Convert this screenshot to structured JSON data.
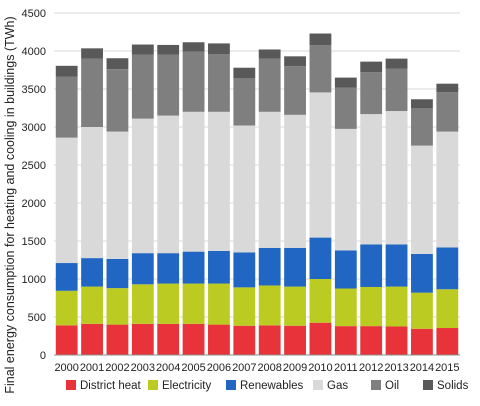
{
  "chart_data": {
    "type": "bar",
    "stacked": true,
    "title": "",
    "xlabel": "",
    "ylabel": "Final energy consumption for heating and cooling in buildings (TWh)",
    "ylim": [
      0,
      4500
    ],
    "yticks": [
      0,
      500,
      1000,
      1500,
      2000,
      2500,
      3000,
      3500,
      4000,
      4500
    ],
    "grid": true,
    "legend": "bottom",
    "categories": [
      "2000",
      "2001",
      "2002",
      "2003",
      "2004",
      "2005",
      "2006",
      "2007",
      "2008",
      "2009",
      "2010",
      "2011",
      "2012",
      "2013",
      "2014",
      "2015"
    ],
    "series": [
      {
        "name": "District heat",
        "color": "#e8333a",
        "values": [
          390,
          410,
          400,
          410,
          410,
          410,
          400,
          385,
          390,
          385,
          425,
          380,
          380,
          375,
          345,
          355
        ]
      },
      {
        "name": "Electricity",
        "color": "#bccb22",
        "values": [
          455,
          490,
          480,
          520,
          530,
          530,
          540,
          505,
          525,
          515,
          575,
          495,
          515,
          525,
          475,
          510
        ]
      },
      {
        "name": "Renewables",
        "color": "#2166c2",
        "values": [
          365,
          375,
          385,
          410,
          400,
          420,
          430,
          460,
          495,
          510,
          545,
          500,
          560,
          555,
          510,
          550
        ]
      },
      {
        "name": "Gas",
        "color": "#d9d9d9",
        "values": [
          1650,
          1725,
          1675,
          1770,
          1810,
          1840,
          1830,
          1670,
          1790,
          1750,
          1910,
          1600,
          1715,
          1755,
          1425,
          1525
        ]
      },
      {
        "name": "Oil",
        "color": "#7f7f7f",
        "values": [
          800,
          900,
          820,
          840,
          800,
          790,
          760,
          620,
          700,
          640,
          620,
          545,
          550,
          560,
          490,
          520
        ]
      },
      {
        "name": "Solids",
        "color": "#595959",
        "values": [
          145,
          135,
          145,
          135,
          130,
          125,
          140,
          140,
          120,
          130,
          155,
          130,
          140,
          130,
          120,
          110
        ]
      }
    ]
  }
}
